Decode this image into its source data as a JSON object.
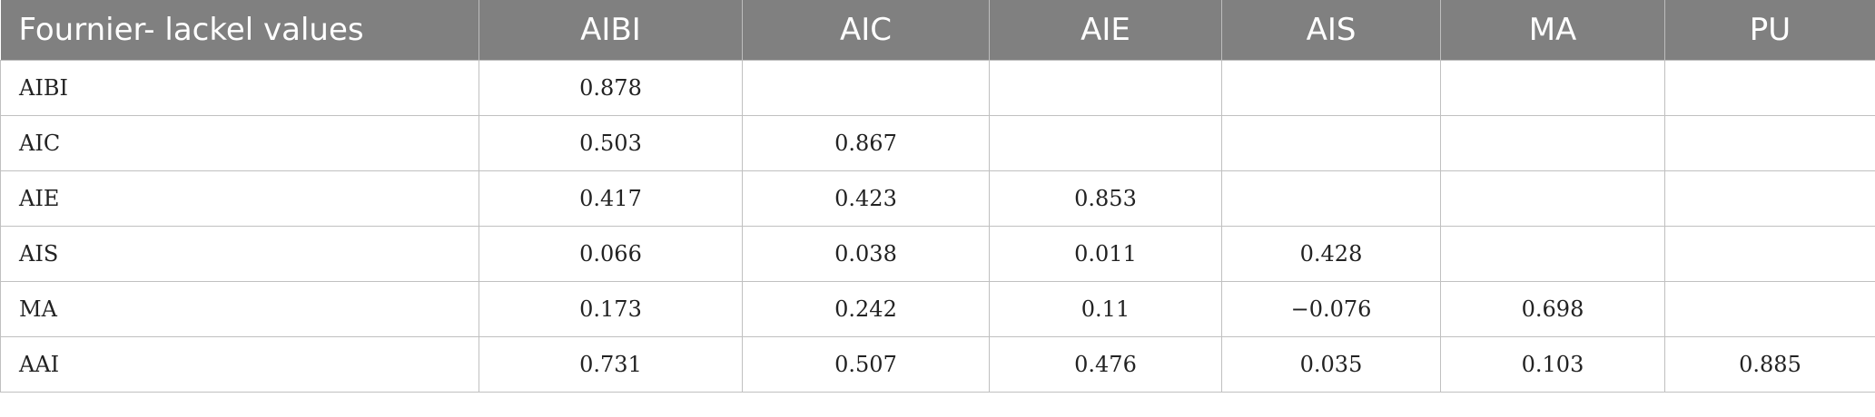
{
  "table": {
    "header": [
      "Fournier- lackel values",
      "AIBI",
      "AIC",
      "AIE",
      "AIS",
      "MA",
      "PU"
    ],
    "rows": [
      {
        "label": "AIBI",
        "cells": [
          "0.878",
          "",
          "",
          "",
          "",
          ""
        ]
      },
      {
        "label": "AIC",
        "cells": [
          "0.503",
          "0.867",
          "",
          "",
          "",
          ""
        ]
      },
      {
        "label": "AIE",
        "cells": [
          "0.417",
          "0.423",
          "0.853",
          "",
          "",
          ""
        ]
      },
      {
        "label": "AIS",
        "cells": [
          "0.066",
          "0.038",
          "0.011",
          "0.428",
          "",
          ""
        ]
      },
      {
        "label": "MA",
        "cells": [
          "0.173",
          "0.242",
          "0.11",
          "−0.076",
          "0.698",
          ""
        ]
      },
      {
        "label": "AAI",
        "cells": [
          "0.731",
          "0.507",
          "0.476",
          "0.035",
          "0.103",
          "0.885"
        ]
      }
    ]
  },
  "colors": {
    "header_bg": "#808080",
    "header_text": "#ffffff",
    "grid": "#c0c0c0"
  }
}
